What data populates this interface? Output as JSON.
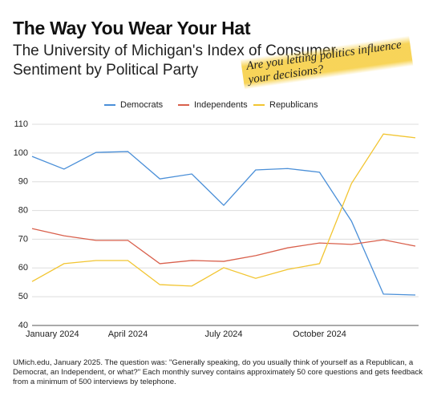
{
  "chart_data": {
    "type": "line",
    "title": "The Way You Wear Your Hat",
    "subtitle": "The University of Michigan's Index of Consumer Sentiment by Political Party",
    "annotation": "Are you letting politics influence your decisions?",
    "footnote": "UMich.edu, January 2025. The question was: \"Generally speaking, do you usually think of yourself as a Republican, a Democrat, an Independent, or what?\"  Each monthly survey contains approximately 50 core questions and gets feedback from a minimum of 500 interviews by telephone.",
    "categories": [
      "January 2024",
      null,
      null,
      "April 2024",
      null,
      null,
      "July 2024",
      null,
      null,
      "October 2024",
      null,
      null,
      null
    ],
    "series": [
      {
        "name": "Democrats",
        "color": "#4a8fd8",
        "values": [
          98.8,
          94.4,
          100.2,
          100.5,
          91,
          92.7,
          81.8,
          94.1,
          94.6,
          93.3,
          76.3,
          50.9,
          50.6
        ]
      },
      {
        "name": "Independents",
        "color": "#d9604c",
        "values": [
          73.7,
          71.2,
          69.6,
          69.6,
          61.5,
          62.6,
          62.3,
          64.3,
          67,
          68.7,
          68.2,
          69.8,
          67.6
        ]
      },
      {
        "name": "Republicans",
        "color": "#f2c531",
        "values": [
          55.3,
          61.5,
          62.6,
          62.6,
          54.2,
          53.7,
          60.1,
          56.4,
          59.5,
          61.5,
          89.4,
          106.6,
          105.3
        ]
      }
    ],
    "ylim": [
      40,
      110
    ],
    "yticks": [
      40,
      50,
      60,
      70,
      80,
      90,
      100,
      110
    ],
    "grid": true,
    "legend": "top"
  }
}
